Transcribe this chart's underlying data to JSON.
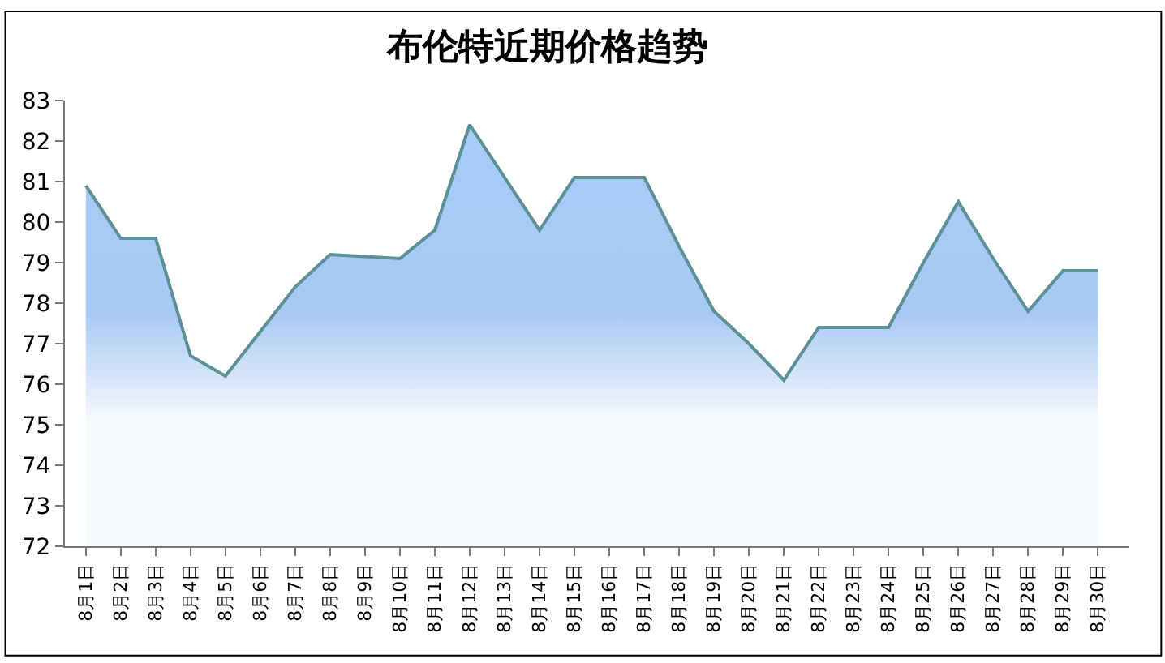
{
  "chart_data": {
    "type": "area",
    "title": "布伦特近期价格趋势",
    "categories": [
      "8月1日",
      "8月2日",
      "8月3日",
      "8月4日",
      "8月5日",
      "8月6日",
      "8月7日",
      "8月8日",
      "8月9日",
      "8月10日",
      "8月11日",
      "8月12日",
      "8月13日",
      "8月14日",
      "8月15日",
      "8月16日",
      "8月17日",
      "8月18日",
      "8月19日",
      "8月20日",
      "8月21日",
      "8月22日",
      "8月23日",
      "8月24日",
      "8月25日",
      "8月26日",
      "8月27日",
      "8月28日",
      "8月29日",
      "8月30日"
    ],
    "series": [
      {
        "color": "#5b9196",
        "values": [
          80.9,
          79.6,
          79.6,
          76.7,
          76.2,
          77.3,
          78.4,
          79.2,
          79.15,
          79.1,
          79.8,
          82.4,
          81.1,
          79.8,
          81.1,
          81.1,
          81.1,
          79.4,
          77.8,
          77.0,
          76.1,
          77.4,
          77.4,
          77.4,
          79.0,
          80.5,
          79.1,
          77.8,
          78.8,
          78.8
        ]
      }
    ],
    "ylim": [
      72,
      83
    ],
    "yticks": [
      72,
      73,
      74,
      75,
      76,
      77,
      78,
      79,
      80,
      81,
      82,
      83
    ],
    "legend": false
  }
}
